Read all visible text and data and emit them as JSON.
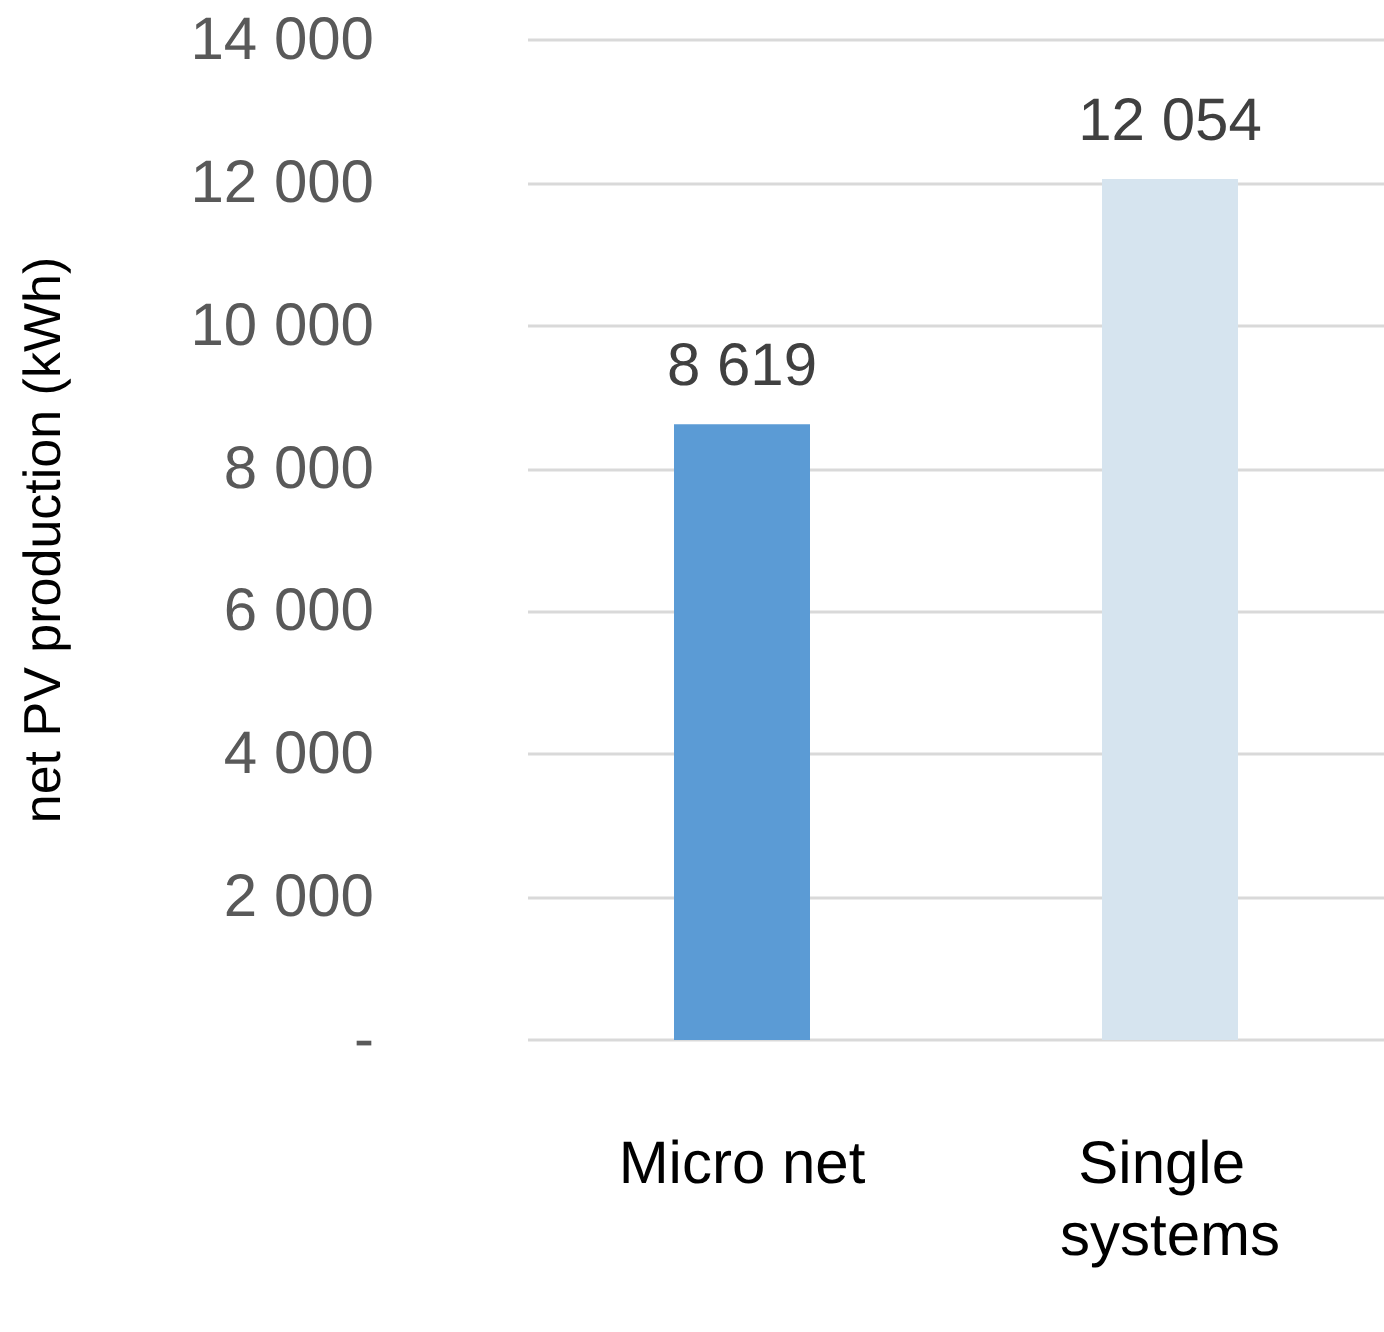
{
  "chart_data": {
    "type": "bar",
    "ylabel": "net PV production (kWh)",
    "categories": [
      "Micro net",
      "Single systems"
    ],
    "values": [
      8619,
      12054
    ],
    "colors": [
      "#5b9bd5",
      "#d6e4ef"
    ],
    "value_labels": [
      "8 619",
      "12 054"
    ],
    "ylim": [
      0,
      14000
    ],
    "yticks": [
      {
        "value": 0,
        "label": "-"
      },
      {
        "value": 2000,
        "label": "2 000"
      },
      {
        "value": 4000,
        "label": "4 000"
      },
      {
        "value": 6000,
        "label": "6 000"
      },
      {
        "value": 8000,
        "label": "8 000"
      },
      {
        "value": 10000,
        "label": "10 000"
      },
      {
        "value": 12000,
        "label": "12 000"
      },
      {
        "value": 14000,
        "label": "14 000"
      }
    ],
    "grid": "y"
  }
}
